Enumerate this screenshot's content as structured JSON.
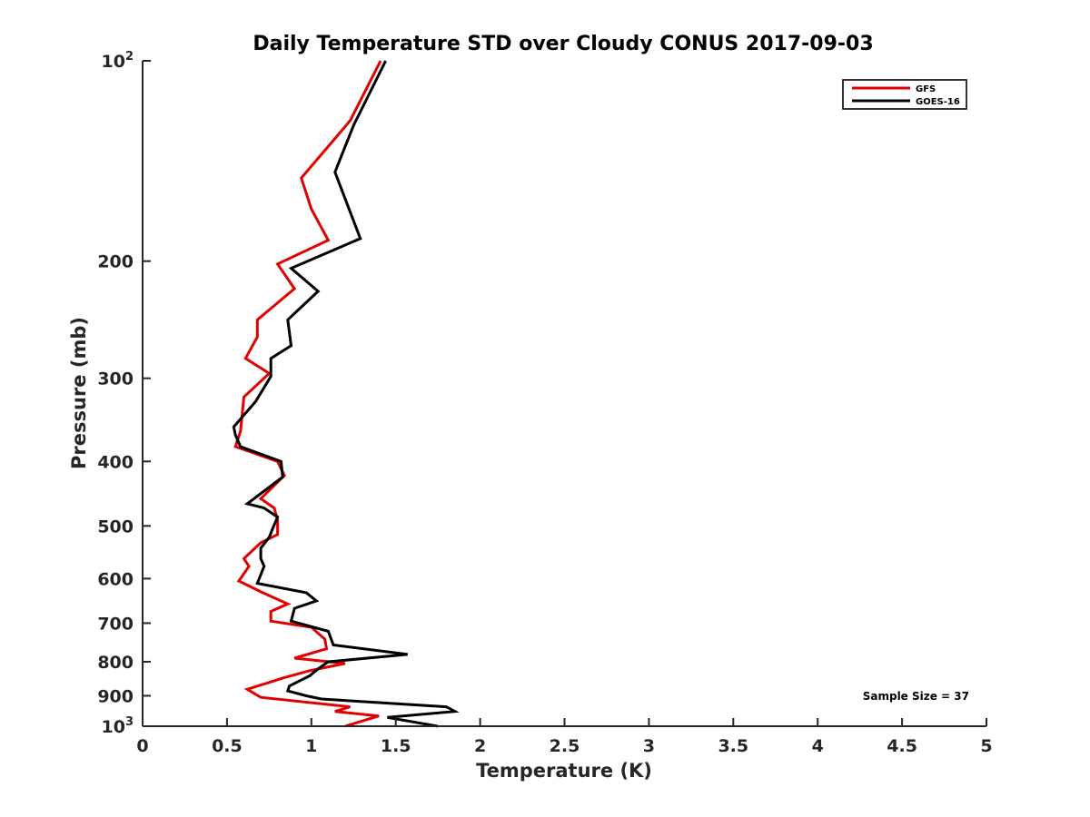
{
  "chart_data": {
    "type": "line",
    "title": "Daily Temperature STD over Cloudy CONUS 2017-09-03",
    "xlabel": "Temperature (K)",
    "ylabel": "Pressure (mb)",
    "xlim": [
      0,
      5
    ],
    "ylim": [
      100,
      1000
    ],
    "y_scale": "log",
    "y_direction": "reverse",
    "grid": false,
    "legend_position": "top-right",
    "x_ticks": [
      "0",
      "0.5",
      "1",
      "1.5",
      "2",
      "2.5",
      "3",
      "3.5",
      "4",
      "4.5",
      "5"
    ],
    "x_tick_values": [
      0,
      0.5,
      1,
      1.5,
      2,
      2.5,
      3,
      3.5,
      4,
      4.5,
      5
    ],
    "y_ticks": [
      {
        "value": 100,
        "base": "10",
        "exp": "2",
        "text": ""
      },
      {
        "value": 200,
        "base": "",
        "exp": "",
        "text": "200"
      },
      {
        "value": 300,
        "base": "",
        "exp": "",
        "text": "300"
      },
      {
        "value": 400,
        "base": "",
        "exp": "",
        "text": "400"
      },
      {
        "value": 500,
        "base": "",
        "exp": "",
        "text": "500"
      },
      {
        "value": 600,
        "base": "",
        "exp": "",
        "text": "600"
      },
      {
        "value": 700,
        "base": "",
        "exp": "",
        "text": "700"
      },
      {
        "value": 800,
        "base": "",
        "exp": "",
        "text": "800"
      },
      {
        "value": 900,
        "base": "",
        "exp": "",
        "text": "900"
      },
      {
        "value": 1000,
        "base": "10",
        "exp": "3",
        "text": ""
      }
    ],
    "annotation": "Sample Size = 37",
    "series": [
      {
        "name": "GFS",
        "color": "#e00000",
        "points": [
          [
            1.41,
            100
          ],
          [
            1.23,
            123
          ],
          [
            0.94,
            150
          ],
          [
            1.0,
            167
          ],
          [
            1.1,
            186
          ],
          [
            0.8,
            202
          ],
          [
            0.9,
            220
          ],
          [
            0.68,
            245
          ],
          [
            0.68,
            260
          ],
          [
            0.61,
            280
          ],
          [
            0.75,
            295
          ],
          [
            0.6,
            320
          ],
          [
            0.58,
            360
          ],
          [
            0.55,
            380
          ],
          [
            0.8,
            400
          ],
          [
            0.84,
            420
          ],
          [
            0.7,
            455
          ],
          [
            0.78,
            470
          ],
          [
            0.8,
            490
          ],
          [
            0.8,
            515
          ],
          [
            0.7,
            530
          ],
          [
            0.6,
            560
          ],
          [
            0.63,
            575
          ],
          [
            0.57,
            605
          ],
          [
            0.7,
            628
          ],
          [
            0.86,
            655
          ],
          [
            0.76,
            672
          ],
          [
            0.76,
            695
          ],
          [
            1.0,
            710
          ],
          [
            1.08,
            740
          ],
          [
            1.09,
            765
          ],
          [
            0.9,
            790
          ],
          [
            1.2,
            805
          ],
          [
            0.99,
            825
          ],
          [
            0.84,
            845
          ],
          [
            0.62,
            880
          ],
          [
            0.7,
            905
          ],
          [
            1.23,
            935
          ],
          [
            1.14,
            950
          ],
          [
            1.4,
            965
          ],
          [
            1.2,
            1000
          ]
        ]
      },
      {
        "name": "GOES-16",
        "color": "#000000",
        "points": [
          [
            1.44,
            100
          ],
          [
            1.25,
            125
          ],
          [
            1.14,
            147
          ],
          [
            1.29,
            185
          ],
          [
            0.88,
            205
          ],
          [
            1.04,
            222
          ],
          [
            0.86,
            245
          ],
          [
            0.88,
            268
          ],
          [
            0.76,
            280
          ],
          [
            0.76,
            298
          ],
          [
            0.67,
            325
          ],
          [
            0.54,
            355
          ],
          [
            0.55,
            365
          ],
          [
            0.58,
            380
          ],
          [
            0.82,
            400
          ],
          [
            0.83,
            422
          ],
          [
            0.62,
            463
          ],
          [
            0.72,
            470
          ],
          [
            0.8,
            485
          ],
          [
            0.77,
            505
          ],
          [
            0.75,
            520
          ],
          [
            0.7,
            540
          ],
          [
            0.7,
            560
          ],
          [
            0.72,
            575
          ],
          [
            0.68,
            610
          ],
          [
            0.97,
            630
          ],
          [
            1.03,
            648
          ],
          [
            0.9,
            665
          ],
          [
            0.88,
            695
          ],
          [
            1.1,
            720
          ],
          [
            1.13,
            755
          ],
          [
            1.57,
            780
          ],
          [
            1.1,
            800
          ],
          [
            1.04,
            820
          ],
          [
            0.99,
            840
          ],
          [
            0.87,
            870
          ],
          [
            0.86,
            885
          ],
          [
            0.97,
            900
          ],
          [
            1.06,
            910
          ],
          [
            1.8,
            935
          ],
          [
            1.85,
            950
          ],
          [
            1.45,
            970
          ],
          [
            1.75,
            1000
          ]
        ]
      }
    ]
  }
}
